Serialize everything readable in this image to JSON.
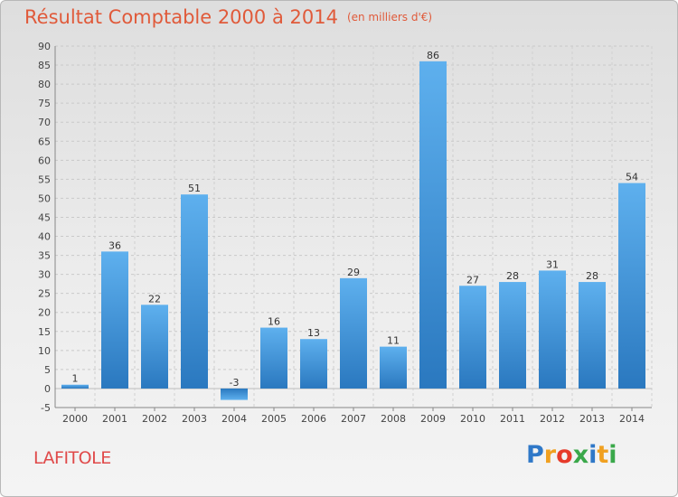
{
  "title": "Résultat Comptable 2000 à 2014",
  "subtitle": "(en milliers d'€)",
  "commune": "LAFITOLE",
  "logo": {
    "letters": [
      "P",
      "r",
      "o",
      "x",
      "i",
      "t",
      "i"
    ],
    "colors": [
      "#2f78c8",
      "#f0a020",
      "#e63a2a",
      "#3aa84a",
      "#2f78c8",
      "#f0a020",
      "#3aa84a"
    ]
  },
  "chart_data": {
    "type": "bar",
    "title": "Résultat Comptable 2000 à 2014",
    "ylabel": "en milliers d'€",
    "categories": [
      "2000",
      "2001",
      "2002",
      "2003",
      "2004",
      "2005",
      "2006",
      "2007",
      "2008",
      "2009",
      "2010",
      "2011",
      "2012",
      "2013",
      "2014"
    ],
    "values": [
      1,
      36,
      22,
      51,
      -3,
      16,
      13,
      29,
      11,
      86,
      27,
      28,
      31,
      28,
      54
    ],
    "data_labels": [
      "1",
      "36",
      "22",
      "51",
      "-3",
      "16",
      "13",
      "29",
      "11",
      "86",
      "27",
      "28",
      "31",
      "28",
      "54"
    ],
    "ylim": [
      -5,
      90
    ],
    "yticks": [
      -5,
      0,
      5,
      10,
      15,
      20,
      25,
      30,
      35,
      40,
      45,
      50,
      55,
      60,
      65,
      70,
      75,
      80,
      85,
      90
    ],
    "grid": true,
    "bar_color": "#4a9ee0"
  }
}
